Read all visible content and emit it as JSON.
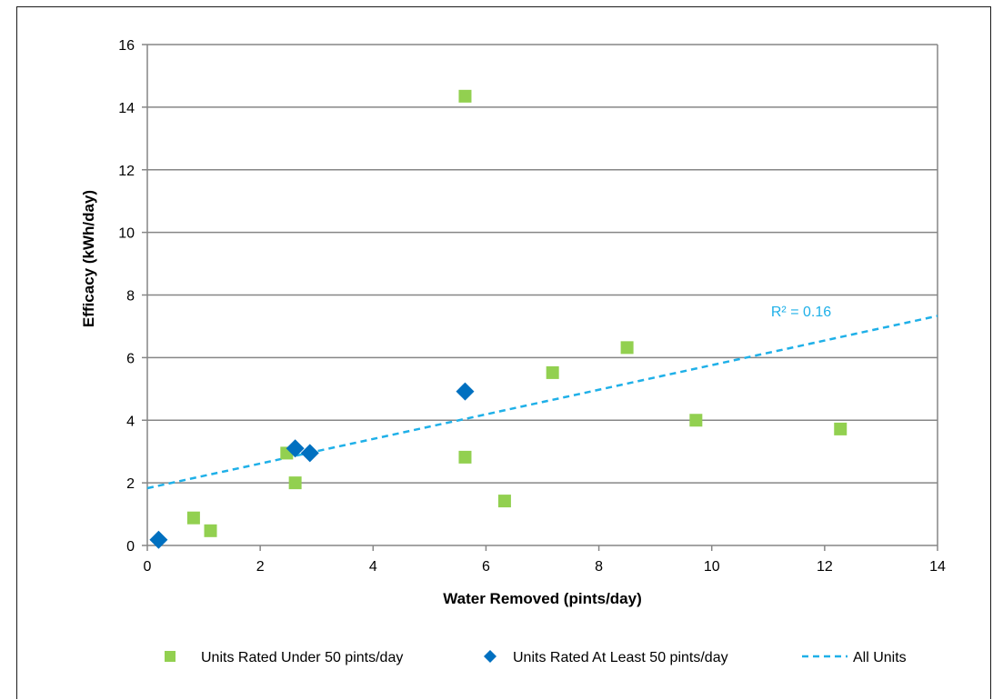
{
  "chart_data": {
    "type": "scatter",
    "title": "",
    "xlabel": "Water Removed (pints/day)",
    "ylabel": "Efficacy (kWh/day)",
    "xlim": [
      0,
      14
    ],
    "ylim": [
      0,
      16
    ],
    "x_ticks": [
      0,
      2,
      4,
      6,
      8,
      10,
      12,
      14
    ],
    "y_ticks": [
      0,
      2,
      4,
      6,
      8,
      10,
      12,
      14,
      16
    ],
    "grid": "horizontal",
    "legend_position": "bottom",
    "series": [
      {
        "name": "Units Rated Under 50 pints/day",
        "marker": "square",
        "color": "#92d050",
        "points": [
          {
            "x": 0.82,
            "y": 0.88
          },
          {
            "x": 1.12,
            "y": 0.47
          },
          {
            "x": 2.47,
            "y": 2.95
          },
          {
            "x": 2.62,
            "y": 2.0
          },
          {
            "x": 5.63,
            "y": 14.35
          },
          {
            "x": 5.63,
            "y": 2.82
          },
          {
            "x": 6.33,
            "y": 1.42
          },
          {
            "x": 7.18,
            "y": 5.52
          },
          {
            "x": 8.5,
            "y": 6.32
          },
          {
            "x": 9.72,
            "y": 4.0
          },
          {
            "x": 12.28,
            "y": 3.72
          }
        ]
      },
      {
        "name": "Units Rated At Least 50 pints/day",
        "marker": "diamond",
        "color": "#0070c0",
        "points": [
          {
            "x": 0.2,
            "y": 0.18
          },
          {
            "x": 2.62,
            "y": 3.1
          },
          {
            "x": 2.88,
            "y": 2.95
          },
          {
            "x": 5.63,
            "y": 4.92
          }
        ]
      }
    ],
    "trendline": {
      "name": "All Units",
      "type": "linear",
      "style": "dashed",
      "color": "#1fb0e8",
      "intercept": 1.83,
      "slope": 0.393,
      "r2_label": "R² = 0.16"
    }
  }
}
